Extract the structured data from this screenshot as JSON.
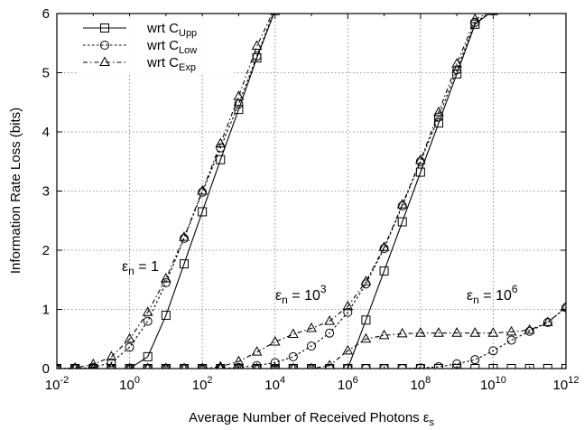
{
  "chart_data": {
    "type": "line",
    "xlabel": "Average Number of Received Photons ε",
    "xlabel_sub": "s",
    "ylabel": "Information Rate Loss (bits)",
    "x_scale": "log",
    "xlim": [
      0.01,
      1000000000000
    ],
    "ylim": [
      0,
      6
    ],
    "x_ticks": [
      {
        "value": 0.01,
        "base": "10",
        "exp": "-2"
      },
      {
        "value": 1,
        "base": "10",
        "exp": "0"
      },
      {
        "value": 100,
        "base": "10",
        "exp": "2"
      },
      {
        "value": 10000,
        "base": "10",
        "exp": "4"
      },
      {
        "value": 1000000,
        "base": "10",
        "exp": "6"
      },
      {
        "value": 100000000,
        "base": "10",
        "exp": "8"
      },
      {
        "value": 10000000000,
        "base": "10",
        "exp": "10"
      },
      {
        "value": 1000000000000,
        "base": "10",
        "exp": "12"
      }
    ],
    "y_ticks": [
      "0",
      "1",
      "2",
      "3",
      "4",
      "5",
      "6"
    ],
    "grid": true,
    "legend_position": "top-left",
    "legend": [
      {
        "text": "wrt C",
        "sub": "Upp",
        "marker": "square",
        "dash": "solid"
      },
      {
        "text": "wrt C",
        "sub": "Low",
        "marker": "circle",
        "dash": "dotted"
      },
      {
        "text": "wrt C",
        "sub": "Exp",
        "marker": "triangle",
        "dash": "dashdot"
      }
    ],
    "annotations": [
      {
        "text": "ε",
        "sub": "n",
        "rest": " = 1",
        "sup": ""
      },
      {
        "text": "ε",
        "sub": "n",
        "rest": " = 10",
        "sup": "3"
      },
      {
        "text": "ε",
        "sub": "n",
        "rest": " = 10",
        "sup": "6"
      }
    ],
    "series": [
      {
        "group": "εn = 1",
        "ref": "Upp",
        "marker": "square",
        "dash": "solid",
        "x": [
          0.01,
          0.0316,
          0.1,
          0.316,
          1,
          3.16,
          10,
          31.6,
          100,
          316,
          1000,
          3160,
          10000
        ],
        "y": [
          0,
          0,
          0,
          0,
          0,
          0.2,
          0.9,
          1.77,
          2.65,
          3.53,
          4.38,
          5.25,
          6.05
        ]
      },
      {
        "group": "εn = 1",
        "ref": "Low",
        "marker": "circle",
        "dash": "dotted",
        "x": [
          0.01,
          0.0316,
          0.1,
          0.316,
          1,
          3.16,
          10,
          31.6,
          100,
          316,
          1000,
          3160,
          10000
        ],
        "y": [
          0,
          0,
          0.02,
          0.1,
          0.36,
          0.8,
          1.45,
          2.2,
          2.98,
          3.73,
          4.47,
          5.28,
          6.08
        ]
      },
      {
        "group": "εn = 1",
        "ref": "Exp",
        "marker": "triangle",
        "dash": "dashdot",
        "x": [
          0.01,
          0.0316,
          0.1,
          0.316,
          1,
          3.16,
          10,
          31.6,
          100,
          316,
          1000,
          3160,
          10000
        ],
        "y": [
          0,
          0.01,
          0.07,
          0.2,
          0.5,
          0.95,
          1.52,
          2.22,
          3.0,
          3.8,
          4.6,
          5.45,
          6.1
        ]
      },
      {
        "group": "εn = 10^3",
        "ref": "Upp",
        "marker": "square",
        "dash": "solid",
        "x": [
          0.01,
          0.0316,
          0.1,
          0.316,
          1,
          3.16,
          10,
          31.6,
          100,
          316,
          1000,
          3160,
          10000,
          31600,
          100000,
          316000,
          1000000,
          3160000,
          10000000,
          31600000,
          100000000,
          316000000,
          1000000000,
          3160000000,
          10000000000
        ],
        "y": [
          0,
          0,
          0,
          0,
          0,
          0,
          0,
          0,
          0,
          0,
          0,
          0,
          0,
          0,
          0,
          0,
          0,
          0.82,
          1.65,
          2.48,
          3.32,
          4.15,
          4.98,
          5.82,
          6.05
        ]
      },
      {
        "group": "εn = 10^3",
        "ref": "Low",
        "marker": "circle",
        "dash": "dotted",
        "x": [
          0.01,
          0.0316,
          0.1,
          0.316,
          1,
          3.16,
          10,
          31.6,
          100,
          316,
          1000,
          3160,
          10000,
          31600,
          100000,
          316000,
          1000000,
          3160000,
          10000000,
          31600000,
          100000000,
          316000000,
          1000000000,
          3160000000,
          10000000000
        ],
        "y": [
          0,
          0,
          0,
          0,
          0,
          0,
          0,
          0,
          0,
          0,
          0.02,
          0.05,
          0.1,
          0.2,
          0.38,
          0.6,
          0.95,
          1.43,
          2.03,
          2.75,
          3.5,
          4.25,
          5.05,
          5.85,
          6.05
        ]
      },
      {
        "group": "εn = 10^3",
        "ref": "Exp",
        "marker": "triangle",
        "dash": "dashdot",
        "x": [
          0.01,
          0.0316,
          0.1,
          0.316,
          1,
          3.16,
          10,
          31.6,
          100,
          316,
          1000,
          3160,
          10000,
          31600,
          100000,
          316000,
          1000000,
          3160000,
          10000000,
          31600000,
          100000000,
          316000000,
          1000000000,
          3160000000,
          10000000000
        ],
        "y": [
          0,
          0,
          0,
          0,
          0,
          0,
          0,
          0,
          0,
          0.03,
          0.12,
          0.28,
          0.45,
          0.58,
          0.68,
          0.8,
          1.05,
          1.47,
          2.05,
          2.77,
          3.52,
          4.33,
          5.15,
          5.9,
          6.05
        ]
      },
      {
        "group": "εn = 10^6",
        "ref": "Upp",
        "marker": "square",
        "dash": "solid",
        "x": [
          0.01,
          0.0316,
          0.1,
          0.316,
          1,
          3.16,
          10,
          31.6,
          100,
          316,
          1000,
          3160,
          10000,
          31600,
          100000,
          316000,
          1000000,
          3160000,
          10000000,
          31600000,
          100000000,
          316000000,
          1000000000,
          3160000000,
          10000000000,
          31600000000,
          100000000000,
          316000000000,
          1000000000000
        ],
        "y": [
          0,
          0,
          0,
          0,
          0,
          0,
          0,
          0,
          0,
          0,
          0,
          0,
          0,
          0,
          0,
          0,
          0,
          0,
          0,
          0,
          0,
          0,
          0,
          0,
          0,
          0,
          0,
          0,
          0
        ]
      },
      {
        "group": "εn = 10^6",
        "ref": "Low",
        "marker": "circle",
        "dash": "dotted",
        "x": [
          0.01,
          0.0316,
          0.1,
          0.316,
          1,
          3.16,
          10,
          31.6,
          100,
          316,
          1000,
          3160,
          10000,
          31600,
          100000,
          316000,
          1000000,
          3160000,
          10000000,
          31600000,
          100000000,
          316000000,
          1000000000,
          3160000000,
          10000000000,
          31600000000,
          100000000000,
          316000000000,
          1000000000000
        ],
        "y": [
          0,
          0,
          0,
          0,
          0,
          0,
          0,
          0,
          0,
          0,
          0,
          0,
          0,
          0,
          0,
          0,
          0,
          0,
          0,
          0,
          0.01,
          0.03,
          0.08,
          0.15,
          0.3,
          0.48,
          0.63,
          0.78,
          1.03
        ]
      },
      {
        "group": "εn = 10^6",
        "ref": "Exp",
        "marker": "triangle",
        "dash": "dashdot",
        "x": [
          0.01,
          0.0316,
          0.1,
          0.316,
          1,
          3.16,
          10,
          31.6,
          100,
          316,
          1000,
          3160,
          10000,
          31600,
          100000,
          316000,
          1000000,
          3160000,
          10000000,
          31600000,
          100000000,
          316000000,
          1000000000,
          3160000000,
          10000000000,
          31600000000,
          100000000000,
          316000000000,
          1000000000000
        ],
        "y": [
          0,
          0,
          0,
          0,
          0,
          0,
          0,
          0,
          0,
          0,
          0,
          0,
          0,
          0,
          0,
          0.05,
          0.3,
          0.5,
          0.56,
          0.59,
          0.6,
          0.6,
          0.6,
          0.6,
          0.6,
          0.62,
          0.65,
          0.78,
          1.04
        ]
      }
    ]
  }
}
